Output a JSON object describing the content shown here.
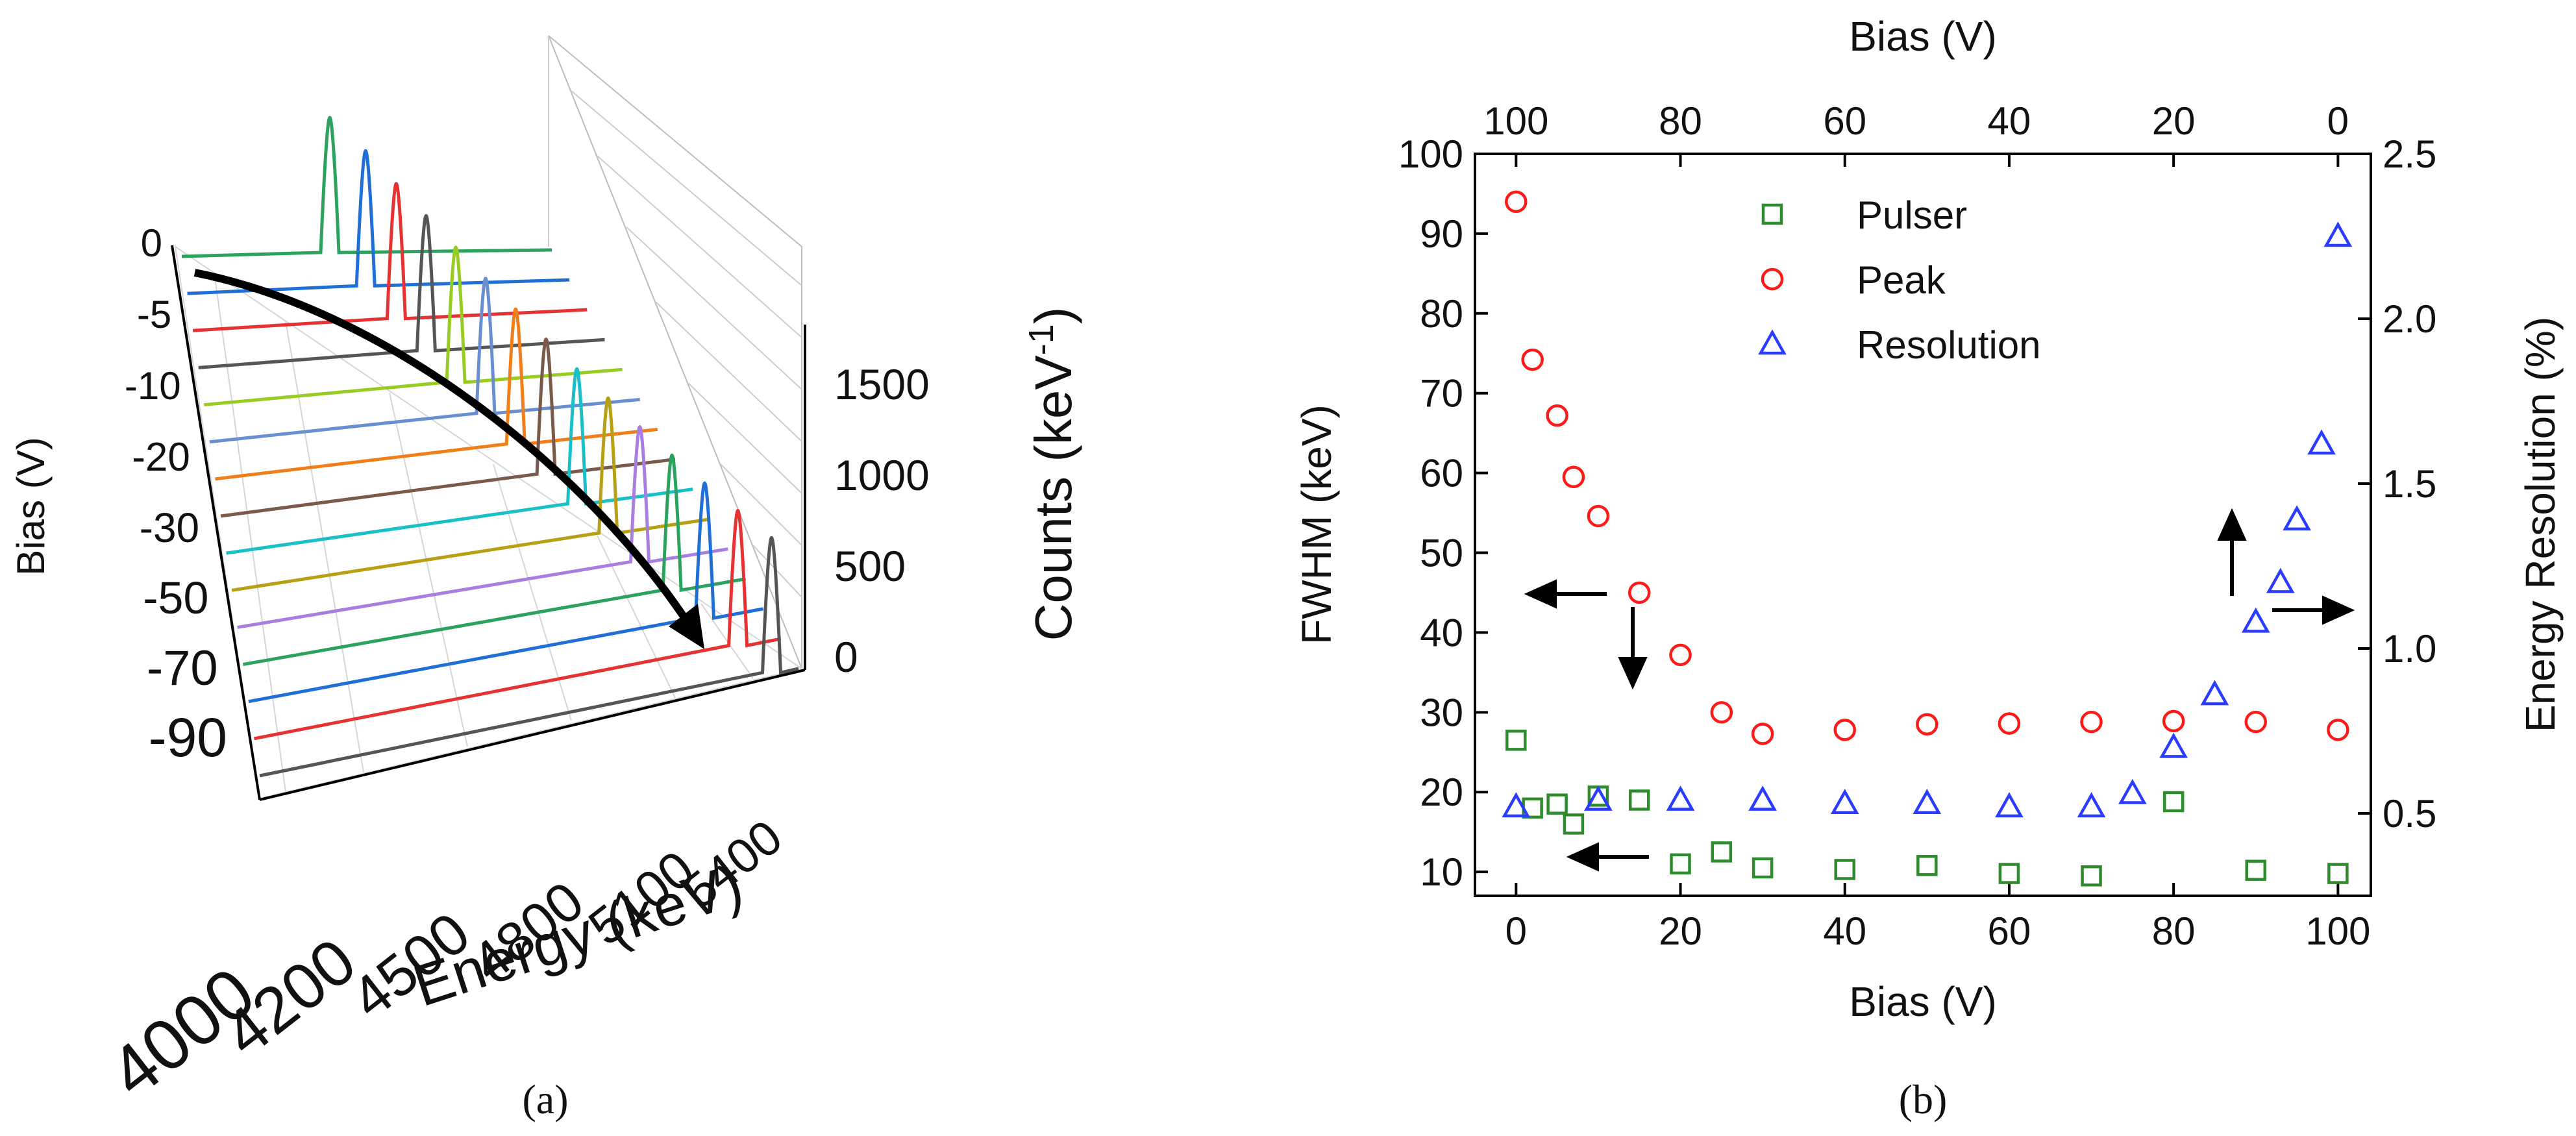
{
  "panel_labels": {
    "a": "(a)",
    "b": "(b)"
  },
  "colors": {
    "pulser": "#2e8b2e",
    "peak": "#ff1a1a",
    "resolution": "#2a3cff",
    "arrow": "#000000"
  },
  "chart_data": [
    {
      "id": "a",
      "type": "line",
      "subtype": "3d-waterfall",
      "xlabel": "Energy (keV)",
      "ylabel": "Bias (V)",
      "zlabel": "Counts (keV",
      "zlabel_sup": "-1",
      "zlabel_end": ")",
      "energy_ticks": [
        "4000",
        "4200",
        "4500",
        "4800",
        "5100",
        "5400"
      ],
      "bias_ticks": [
        "0",
        "-5",
        "-10",
        "-20",
        "-30",
        "-50",
        "-70",
        "-90"
      ],
      "count_ticks": [
        "0",
        "500",
        "1000",
        "1500"
      ],
      "series_colors": [
        "#2ca25f",
        "#1f6fd6",
        "#e63232",
        "#555555",
        "#99cc22",
        "#6a8fd0",
        "#f07f1a",
        "#7a5a4a",
        "#19c0c8",
        "#b7a014",
        "#a87fe0",
        "#2ca25f",
        "#1f6fd6",
        "#e63232",
        "#555555"
      ],
      "curved_arrow": true
    },
    {
      "id": "b",
      "type": "scatter",
      "xlabel": "Bias (V)",
      "top_xlabel": "Bias (V)",
      "ylabel": "FWHM (keV)",
      "y2label": "Energy Resolution (%)",
      "xlim": [
        -5,
        104
      ],
      "ylim": [
        7,
        100
      ],
      "y2lim": [
        0.25,
        2.5
      ],
      "x_ticks": [
        "0",
        "20",
        "40",
        "60",
        "80",
        "100"
      ],
      "top_x_ticks": [
        "100",
        "80",
        "60",
        "40",
        "20",
        "0"
      ],
      "y_ticks": [
        "10",
        "20",
        "30",
        "40",
        "50",
        "60",
        "70",
        "80",
        "90",
        "100"
      ],
      "y2_ticks": [
        "0.5",
        "1.0",
        "1.5",
        "2.0",
        "2.5"
      ],
      "legend": {
        "position": "top-center"
      },
      "series": [
        {
          "name": "Pulser",
          "marker": "square",
          "axis": "left",
          "x": [
            0,
            2,
            5,
            7,
            10,
            15,
            20,
            25,
            30,
            40,
            50,
            60,
            70,
            80,
            90,
            100
          ],
          "y": [
            26.5,
            18,
            18.5,
            16,
            19.5,
            19,
            11,
            12.5,
            10.5,
            10.3,
            10.8,
            9.8,
            9.5,
            18.8,
            10.2,
            9.8
          ]
        },
        {
          "name": "Peak",
          "marker": "circle",
          "axis": "left",
          "x": [
            0,
            2,
            5,
            7,
            10,
            15,
            20,
            25,
            30,
            40,
            50,
            60,
            70,
            80,
            90,
            100
          ],
          "y": [
            94,
            74.2,
            67.2,
            59.5,
            54.6,
            45,
            37.2,
            30,
            27.3,
            27.8,
            28.5,
            28.6,
            28.8,
            28.9,
            28.8,
            27.8
          ]
        },
        {
          "name": "Resolution",
          "marker": "triangle",
          "axis": "right",
          "x": [
            0,
            10,
            20,
            30,
            40,
            50,
            60,
            70,
            75,
            80,
            85,
            90,
            93,
            95,
            98,
            100
          ],
          "y": [
            0.52,
            0.54,
            0.54,
            0.54,
            0.53,
            0.53,
            0.52,
            0.52,
            0.56,
            0.7,
            0.86,
            1.08,
            1.2,
            1.39,
            1.62,
            2.25
          ]
        }
      ]
    }
  ]
}
